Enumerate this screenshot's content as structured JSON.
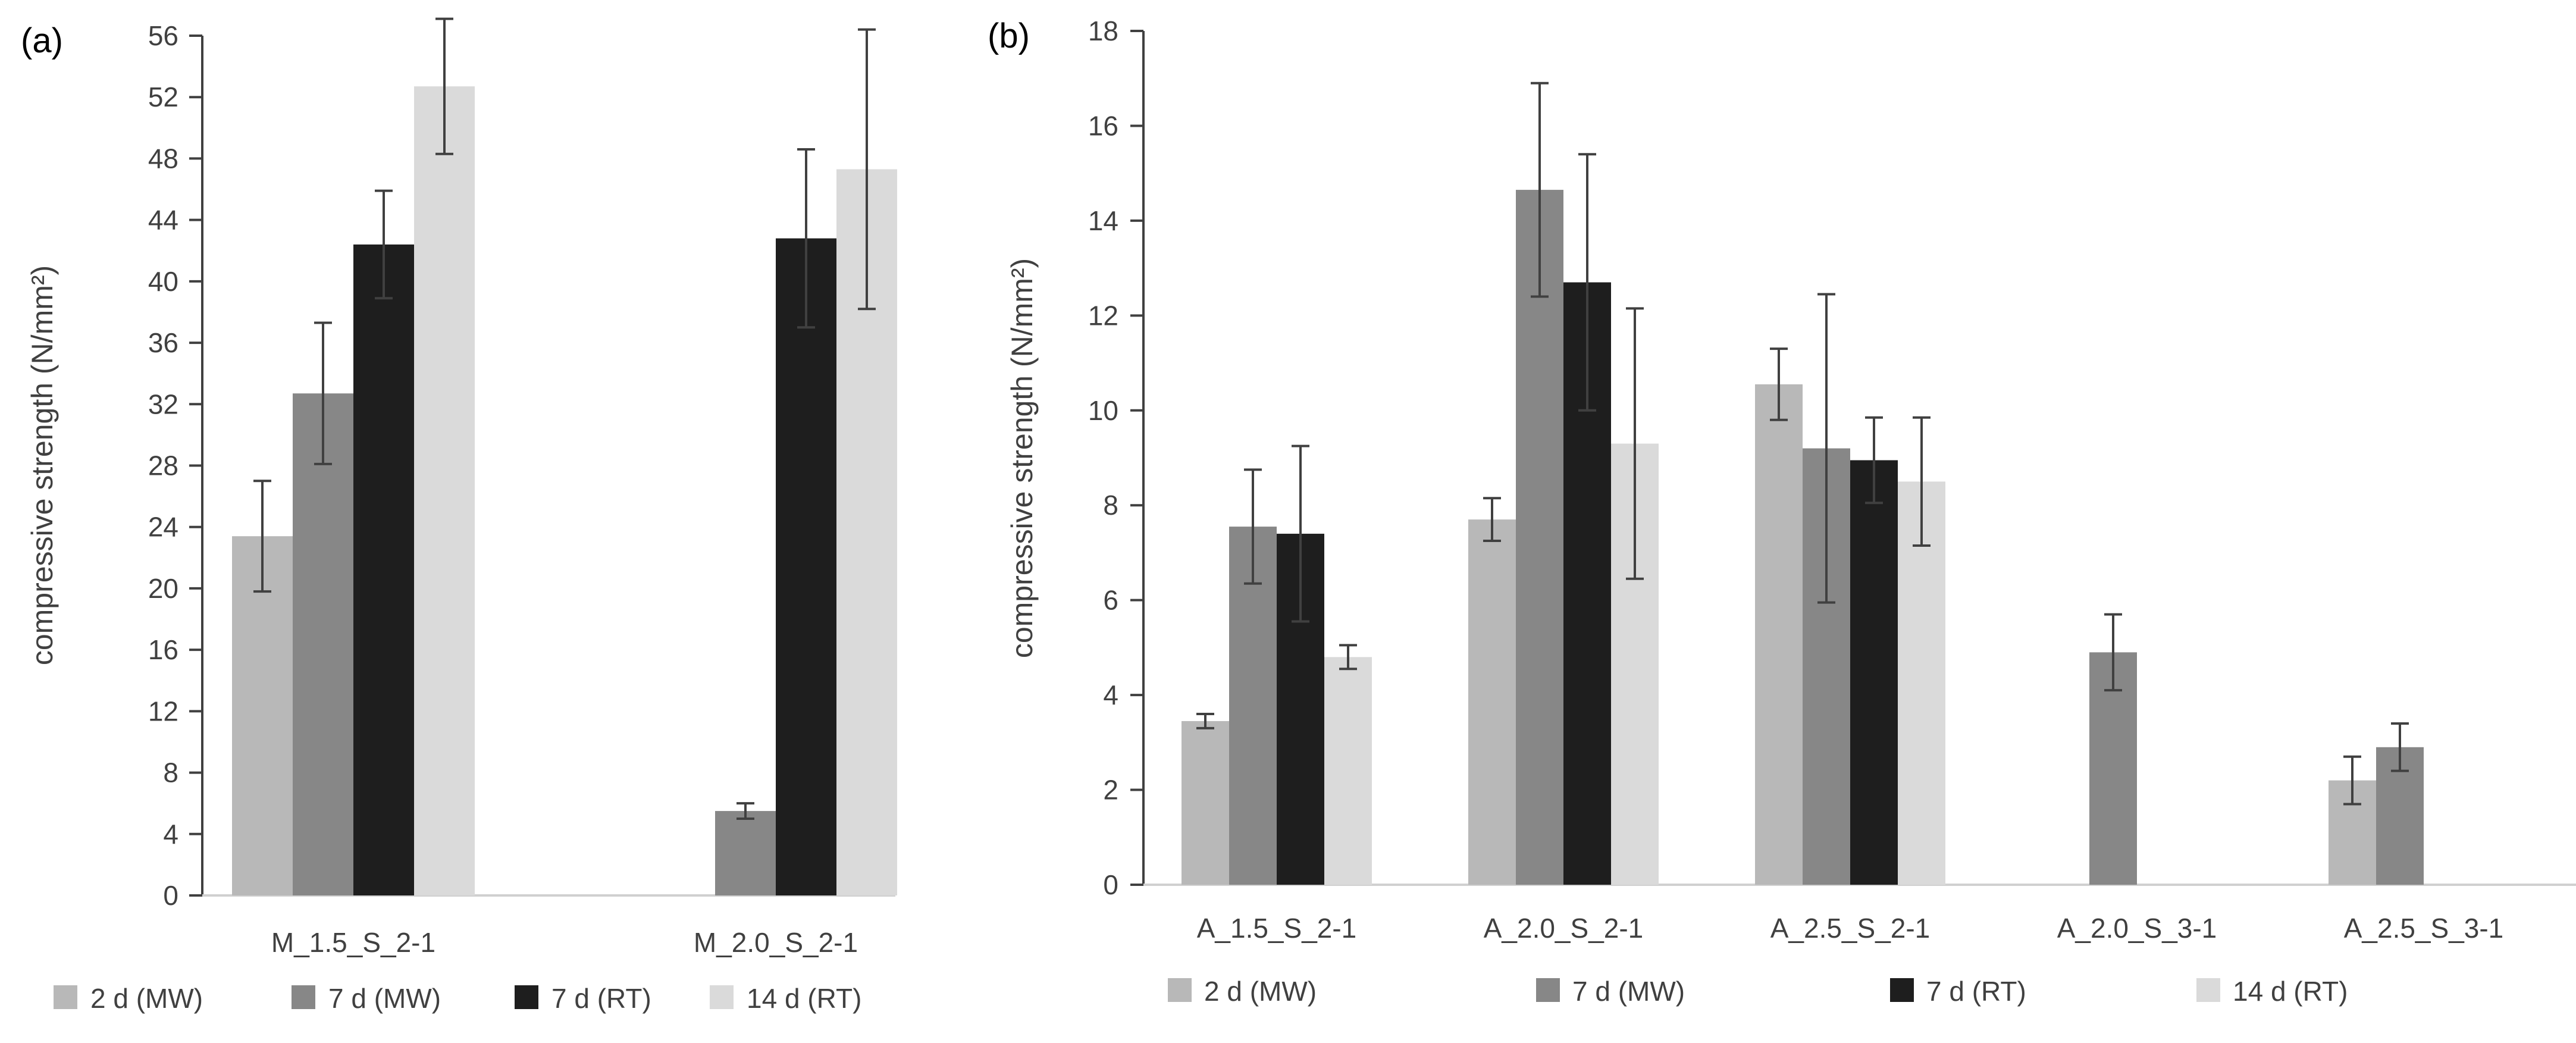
{
  "chart_data": [
    {
      "type": "bar",
      "panel_label": "(a)",
      "title": "",
      "xlabel": "",
      "ylabel": "compressive strength (N/mm²)",
      "ylim": [
        0,
        56
      ],
      "yticks": [
        0,
        4,
        8,
        12,
        16,
        20,
        24,
        28,
        32,
        36,
        40,
        44,
        48,
        52,
        56
      ],
      "categories": [
        "M_1.5_S_2-1",
        "M_2.0_S_2-1"
      ],
      "series": [
        {
          "name": "2 d (MW)",
          "color": "#b8b8b8",
          "values": [
            23.4,
            null
          ],
          "errors": [
            3.6,
            null
          ]
        },
        {
          "name": "7 d (MW)",
          "color": "#878787",
          "values": [
            32.7,
            5.5
          ],
          "errors": [
            4.6,
            0.5
          ]
        },
        {
          "name": "7 d (RT)",
          "color": "#1e1e1e",
          "values": [
            42.4,
            42.8
          ],
          "errors": [
            3.5,
            5.8
          ]
        },
        {
          "name": "14 d (RT)",
          "color": "#dadada",
          "values": [
            52.7,
            47.3
          ],
          "errors": [
            4.4,
            9.1
          ]
        }
      ],
      "grid": false,
      "legend_position": "bottom"
    },
    {
      "type": "bar",
      "panel_label": "(b)",
      "title": "",
      "xlabel": "",
      "ylabel": "compressive strength (N/mm²)",
      "ylim": [
        0,
        18
      ],
      "yticks": [
        0,
        2,
        4,
        6,
        8,
        10,
        12,
        14,
        16,
        18
      ],
      "categories": [
        "A_1.5_S_2-1",
        "A_2.0_S_2-1",
        "A_2.5_S_2-1",
        "A_2.0_S_3-1",
        "A_2.5_S_3-1"
      ],
      "series": [
        {
          "name": "2 d (MW)",
          "color": "#b8b8b8",
          "values": [
            3.45,
            7.7,
            10.55,
            null,
            2.2
          ],
          "errors": [
            0.15,
            0.45,
            0.75,
            null,
            0.5
          ]
        },
        {
          "name": "7 d (MW)",
          "color": "#878787",
          "values": [
            7.55,
            14.65,
            9.2,
            4.9,
            2.9
          ],
          "errors": [
            1.2,
            2.25,
            3.25,
            0.8,
            0.5
          ]
        },
        {
          "name": "7 d (RT)",
          "color": "#1e1e1e",
          "values": [
            7.4,
            12.7,
            8.95,
            null,
            null
          ],
          "errors": [
            1.85,
            2.7,
            0.9,
            null,
            null
          ]
        },
        {
          "name": "14 d (RT)",
          "color": "#dadada",
          "values": [
            4.8,
            9.3,
            8.5,
            null,
            null
          ],
          "errors": [
            0.25,
            2.85,
            1.35,
            null,
            null
          ]
        }
      ],
      "grid": false,
      "legend_position": "bottom"
    }
  ]
}
